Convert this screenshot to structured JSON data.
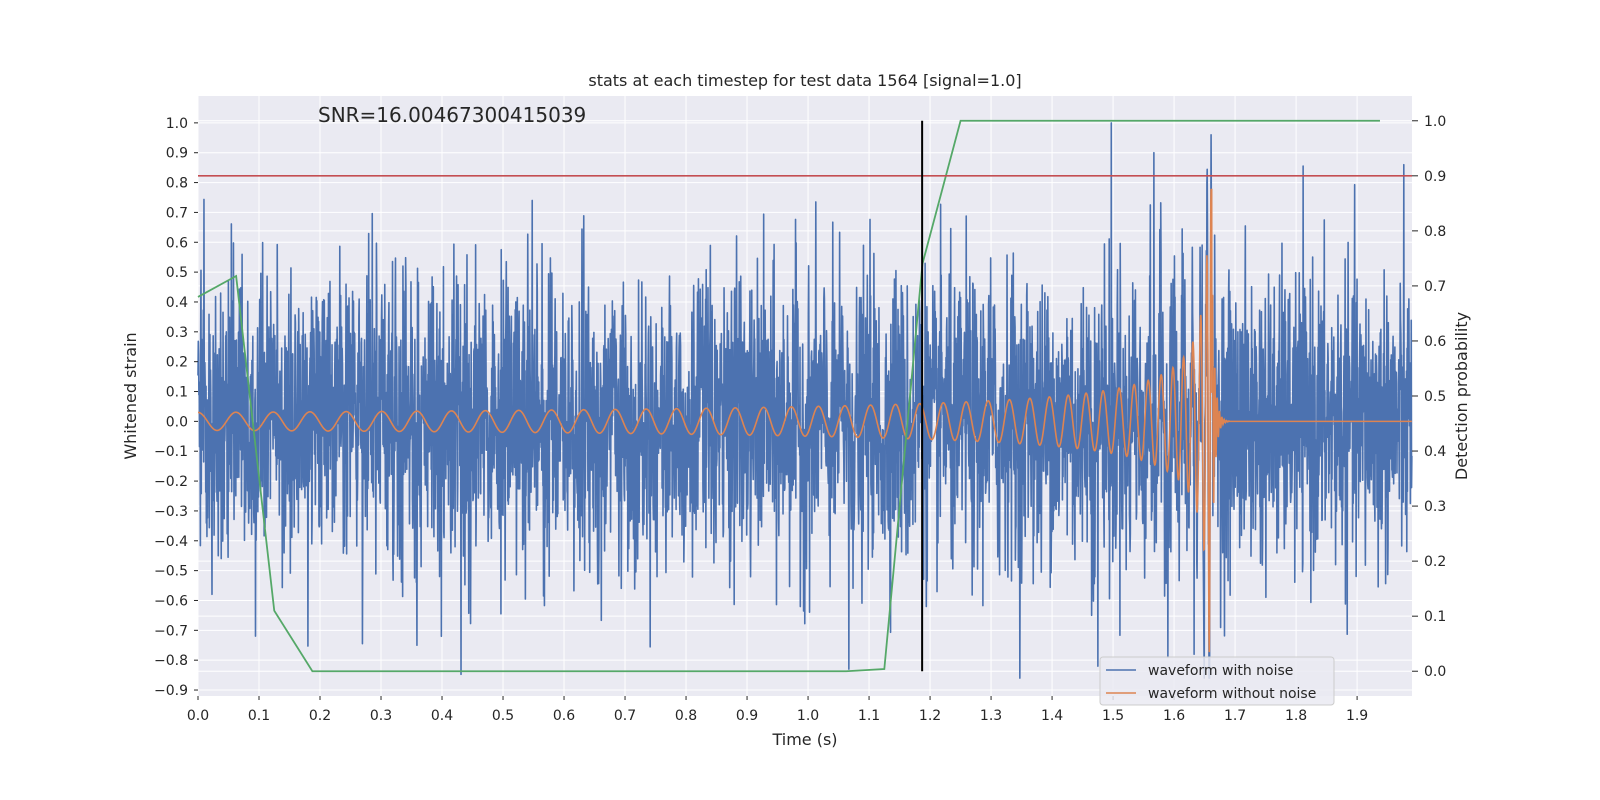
{
  "chart_data": {
    "type": "line",
    "title": "stats at each timestep for test data 1564 [signal=1.0]",
    "annotation": "SNR=16.00467300415039",
    "xlabel": "Time (s)",
    "ylabel_left": "Whitened strain",
    "ylabel_right": "Detection probability",
    "xlim": [
      0.0,
      1.99
    ],
    "ylim_left": [
      -0.92,
      1.09
    ],
    "ylim_right": [
      -0.045,
      1.045
    ],
    "x_ticks": [
      "0.0",
      "0.1",
      "0.2",
      "0.3",
      "0.4",
      "0.5",
      "0.6",
      "0.7",
      "0.8",
      "0.9",
      "1.0",
      "1.1",
      "1.2",
      "1.3",
      "1.4",
      "1.5",
      "1.6",
      "1.7",
      "1.8",
      "1.9"
    ],
    "y_left_ticks": [
      "-0.9",
      "-0.8",
      "-0.7",
      "-0.6",
      "-0.5",
      "-0.4",
      "-0.3",
      "-0.2",
      "-0.1",
      "0.0",
      "0.1",
      "0.2",
      "0.3",
      "0.4",
      "0.5",
      "0.6",
      "0.7",
      "0.8",
      "0.9",
      "1.0"
    ],
    "y_right_ticks": [
      "0.0",
      "0.1",
      "0.2",
      "0.3",
      "0.4",
      "0.5",
      "0.6",
      "0.7",
      "0.8",
      "0.9",
      "1.0"
    ],
    "series": [
      {
        "name": "waveform with noise",
        "axis": "left",
        "color": "#4c72b0",
        "description": "dense noisy trace roughly between -0.8 and 1.0 sampled over 0.0-1.99 s",
        "sample_rate": 2048,
        "amplitude_std": 0.24,
        "peaks": [
          [
            0.548,
            0.74
          ],
          [
            1.497,
            1.0
          ],
          [
            1.567,
            0.9
          ],
          [
            1.067,
            -0.83
          ],
          [
            1.475,
            -0.82
          ],
          [
            0.359,
            -0.75
          ],
          [
            0.399,
            -0.72
          ],
          [
            1.633,
            -0.78
          ]
        ]
      },
      {
        "name": "waveform without noise",
        "axis": "left",
        "color": "#dd8452",
        "description": "chirp signal with growing amplitude and frequency, merger near 1.66 s, flat at 0 after ~1.68 s",
        "start_amplitude": 0.03,
        "start_frequency_hz": 16,
        "merger_time": 1.662,
        "peak_max": 0.78,
        "peak_min": -0.72,
        "ringdown_end": 1.69
      },
      {
        "name": "detection probability",
        "axis": "right",
        "color": "#55a868",
        "x": [
          0.0,
          0.0625,
          0.125,
          0.1875,
          1.0625,
          1.125,
          1.1875,
          1.25,
          1.9375
        ],
        "y": [
          0.68,
          0.718,
          0.11,
          0.0,
          0.0,
          0.004,
          0.74,
          1.0,
          1.0
        ]
      }
    ],
    "threshold_line": {
      "axis": "right",
      "y": 0.9,
      "color": "#c44e52"
    },
    "vertical_marker": {
      "x": 1.187,
      "y_range_right": [
        0.0,
        1.0
      ],
      "color": "#000000"
    },
    "legend": {
      "position": "bottom-right",
      "entries": [
        {
          "label": "waveform with noise",
          "color": "#4c72b0"
        },
        {
          "label": "waveform without noise",
          "color": "#dd8452"
        }
      ]
    },
    "grid": true,
    "colors": {
      "background": "#eaeaf2",
      "grid": "#ffffff"
    }
  }
}
